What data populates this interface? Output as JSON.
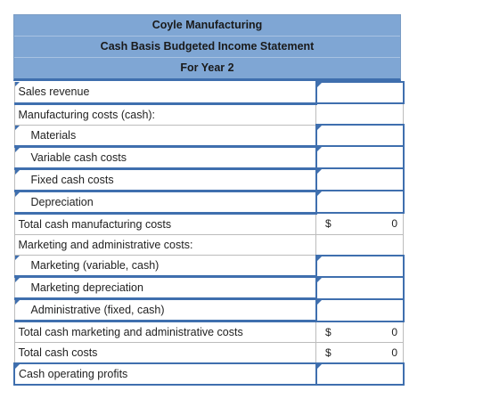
{
  "header": {
    "company": "Coyle Manufacturing",
    "statement": "Cash Basis Budgeted Income Statement",
    "period": "For Year 2"
  },
  "rows": [
    {
      "label": "Sales revenue",
      "indent": false,
      "input": true,
      "dollar": "",
      "value": ""
    },
    {
      "label": "Manufacturing costs (cash):",
      "indent": false,
      "input": false,
      "dollar": "",
      "value": ""
    },
    {
      "label": "Materials",
      "indent": true,
      "input": true,
      "dollar": "",
      "value": ""
    },
    {
      "label": "Variable cash costs",
      "indent": true,
      "input": true,
      "dollar": "",
      "value": ""
    },
    {
      "label": "Fixed cash costs",
      "indent": true,
      "input": true,
      "dollar": "",
      "value": ""
    },
    {
      "label": "Depreciation",
      "indent": true,
      "input": true,
      "dollar": "",
      "value": ""
    },
    {
      "label": "Total cash manufacturing costs",
      "indent": false,
      "input": false,
      "dollar": "$",
      "value": "0"
    },
    {
      "label": "Marketing and administrative costs:",
      "indent": false,
      "input": false,
      "dollar": "",
      "value": ""
    },
    {
      "label": "Marketing (variable, cash)",
      "indent": true,
      "input": true,
      "dollar": "",
      "value": ""
    },
    {
      "label": "Marketing depreciation",
      "indent": true,
      "input": true,
      "dollar": "",
      "value": ""
    },
    {
      "label": "Administrative (fixed, cash)",
      "indent": true,
      "input": true,
      "dollar": "",
      "value": ""
    },
    {
      "label": "Total cash marketing and administrative costs",
      "indent": false,
      "input": false,
      "dollar": "$",
      "value": "0"
    },
    {
      "label": "Total cash costs",
      "indent": false,
      "input": false,
      "dollar": "$",
      "value": "0"
    },
    {
      "label": "Cash operating profits",
      "indent": false,
      "input": true,
      "dollar": "",
      "value": ""
    }
  ]
}
